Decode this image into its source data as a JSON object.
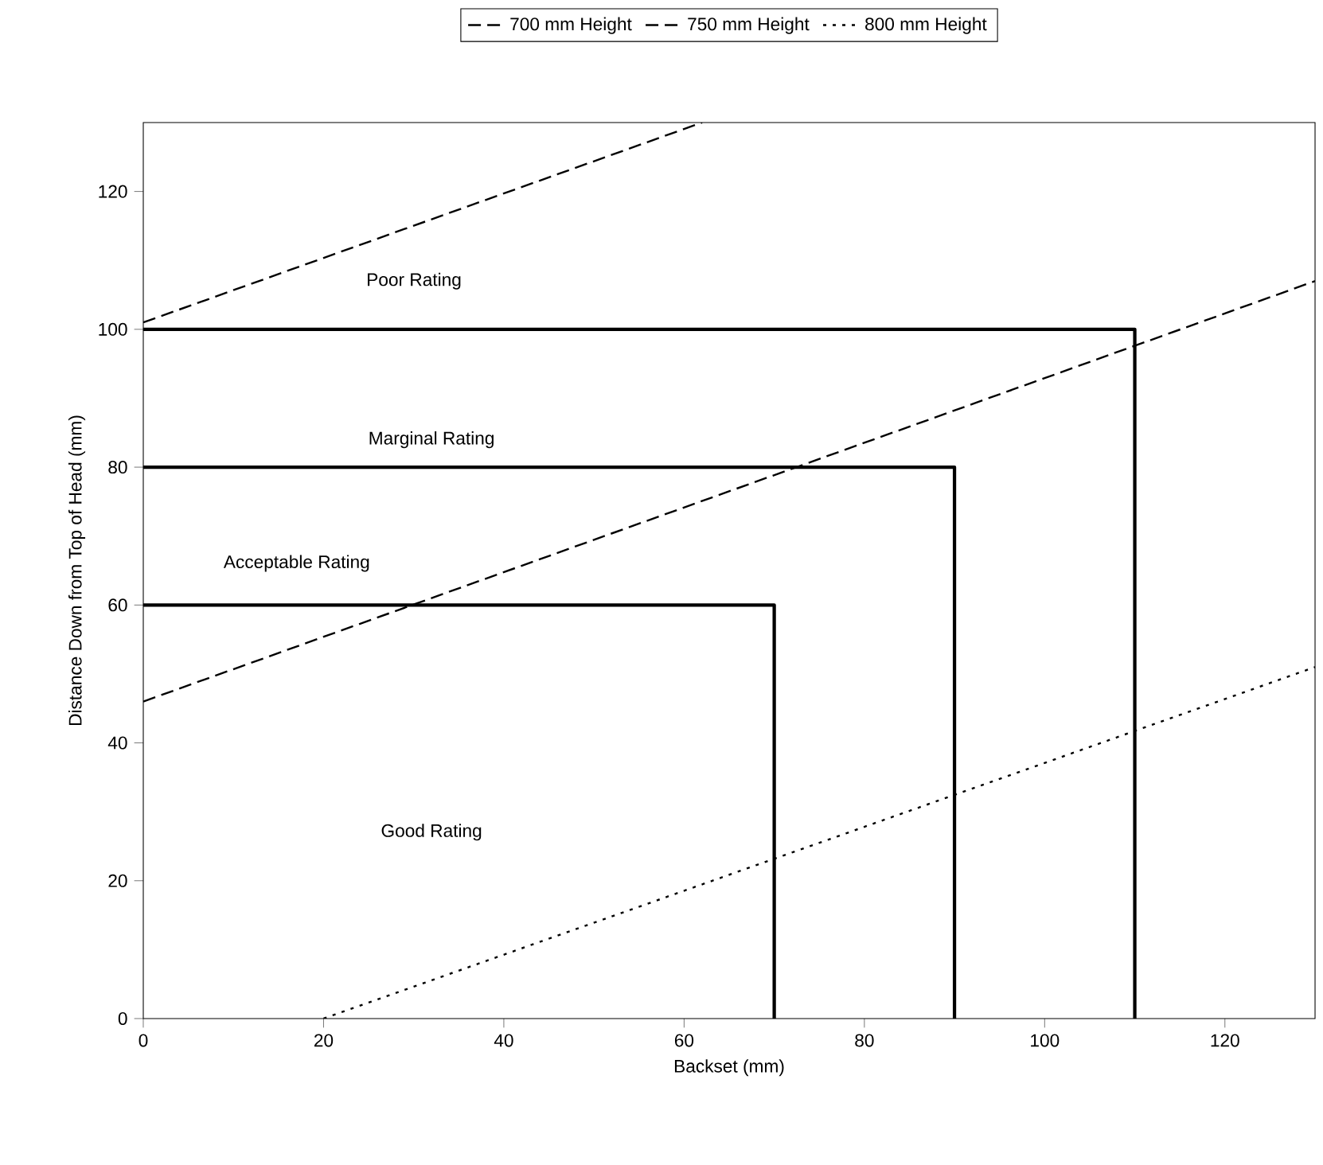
{
  "chart_data": {
    "type": "line",
    "xlabel": "Backset (mm)",
    "ylabel": "Distance Down from Top of Head (mm)",
    "xlim": [
      0,
      130
    ],
    "ylim": [
      0,
      130
    ],
    "xticks": [
      0,
      20,
      40,
      60,
      80,
      100,
      120
    ],
    "yticks": [
      0,
      20,
      40,
      60,
      80,
      100,
      120
    ],
    "grid": false,
    "legend": "top",
    "marker": "none",
    "series": [
      {
        "name": "700 mm Height",
        "color": "#000000",
        "line_style": "dashed",
        "x": [
          0,
          62
        ],
        "values": [
          101,
          130
        ]
      },
      {
        "name": "750 mm Height",
        "color": "#000000",
        "line_style": "dashed",
        "x": [
          0,
          130
        ],
        "values": [
          46,
          107
        ]
      },
      {
        "name": "800 mm Height",
        "color": "#000000",
        "line_style": "dotted",
        "x": [
          20,
          130
        ],
        "values": [
          0,
          51
        ]
      },
      {
        "color": "#000000",
        "line_style": "solid",
        "x": [
          0,
          70,
          70
        ],
        "values": [
          60,
          60,
          0
        ]
      },
      {
        "color": "#000000",
        "line_style": "solid",
        "x": [
          0,
          90,
          90
        ],
        "values": [
          80,
          80,
          0
        ]
      },
      {
        "color": "#000000",
        "line_style": "solid",
        "x": [
          0,
          110,
          110
        ],
        "values": [
          100,
          100,
          0
        ]
      }
    ],
    "annotations": [
      "Poor Rating",
      "Marginal Rating",
      "Acceptable Rating",
      "Good Rating"
    ]
  }
}
